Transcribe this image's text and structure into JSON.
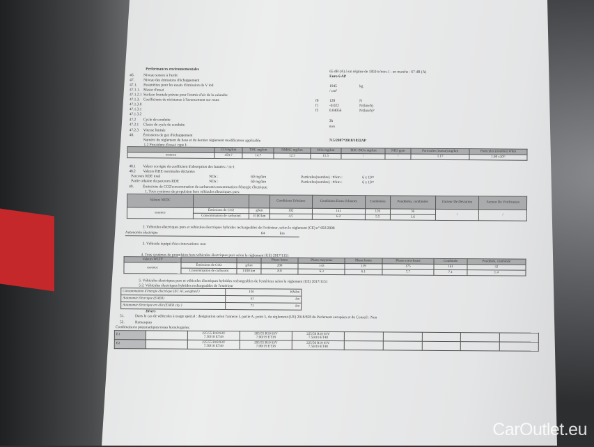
{
  "header": {
    "title": "Performances environnementales",
    "noise": "65 dB (A) à un régime de 1850 tr/min-1 - en marche : 67 dB (A)",
    "euro": "Euro 6 AP"
  },
  "lines": [
    {
      "n": "46.",
      "t": "Niveau sonore à l'arrêt"
    },
    {
      "n": "47.",
      "t": "Niveau des émissions d'échappement"
    },
    {
      "n": "47.1.",
      "t": "Paramètres pour les essais d'émission de V ind"
    },
    {
      "n": "47.1.1.",
      "t": "Masse d'essai"
    },
    {
      "n": "47.1.2.1",
      "t": "Surface frontale prévue pour l'entrée d'air de la calandre"
    },
    {
      "n": "47.1.3.",
      "t": "Coefficients de résistance à l'avancement sur route"
    },
    {
      "n": "47.1.3.0",
      "t": ""
    },
    {
      "n": "47.1.3.1",
      "t": ""
    },
    {
      "n": "47.1.3.2",
      "t": ""
    },
    {
      "n": "47.2",
      "t": "Cycle de conduite"
    },
    {
      "n": "47.2.1",
      "t": "Classe de cycle de conduite"
    },
    {
      "n": "47.2.3",
      "t": "Vitesse limitée"
    },
    {
      "n": "48.",
      "t": "Émissions de gaz d'échappement"
    },
    {
      "n": "",
      "t": "Numéro du règlement de base et du dernier règlement modificateur applicable"
    }
  ],
  "right_values": {
    "mass": "1945",
    "mass_unit": "kg",
    "surface": "/ cm²",
    "f0_label": "f0",
    "f0": "128",
    "f0_unit": "N",
    "f1_label": "f1",
    "f1": "-0.022",
    "f1_unit": "N/(km/h)",
    "f2_label": "f2",
    "f2": "0.04056",
    "f2_unit": "N/(km/h)²",
    "cycle": "3b",
    "class": "non",
    "regulation": "715/2007*2018/1832AP"
  },
  "type1": {
    "label": "1.2 Procédure d'essai: type I:",
    "headers": [
      "CO mg/km",
      "THC mg/km",
      "NMHC mg/km",
      "NOx mg/km",
      "THC+NOx mg/km",
      "NH3 ppm",
      "Particules (masse) mg/km",
      "Particules (nombre) #/km"
    ],
    "row_label": "essence",
    "values": [
      "459.7",
      "14.7",
      "12.3",
      "15.5",
      "/",
      "/",
      "1.17",
      "1.98 x10¹¹"
    ]
  },
  "l481": {
    "n": "48.1",
    "t": "Valeur corrigée du coefficient d'absorption des fumées: / m-1"
  },
  "l482": {
    "n": "48.2",
    "t": "Valeurs RDE maximales déclarées"
  },
  "rde": [
    {
      "label": "Parcours RDE total",
      "nox": "NOx :",
      "nox_val": "60 mg/km",
      "pn": "Particules(nombre) : #/km :",
      "pn_val": "6 x 10¹¹"
    },
    {
      "label": "Partie urbaine du parcours RDE",
      "nox": "NOx :",
      "nox_val": "60 mg/km",
      "pn": "Particules(nombre) : #/km :",
      "pn_val": "6 x 10¹¹"
    }
  ],
  "l49": {
    "n": "49.",
    "t": "Émissions de CO2/consommation de carburant/consommation d'énergie électrique:"
  },
  "nedc": {
    "caption": "1. Tous systèmes de propulsion hors véhicules électriques purs:",
    "title": "Valeurs NEDC",
    "headers": [
      "Conditions Urbaines",
      "Conditions Extra Urbaines",
      "Combinées",
      "Pondérées, combinées",
      "Facteur De Déviation",
      "Facteur De Vérification"
    ],
    "fuel": "essence",
    "rows": [
      {
        "label": "Émissions de CO2",
        "unit": "g/km",
        "values": [
          "102",
          "141",
          "126",
          "36"
        ]
      },
      {
        "label": "Consommation de carburant",
        "unit": "l/100 km",
        "values": [
          "4.5",
          "6.2",
          "5.5",
          "1.6"
        ]
      }
    ],
    "dev": "/",
    "ver": "/"
  },
  "ev2": {
    "t": "2. Véhicules électriques purs et véhicules électriques hybrides rechargeables de l'extérieur, selon le règlement (CE) n° 692/2008",
    "label": "Autonomie électrique",
    "value": "64",
    "unit": "km"
  },
  "eco": "3. Véhicule équipé d'éco-innovations: non",
  "wltp": {
    "caption": "4. Tous systèmes de propulsion hors véhicules électriques purs selon le règlement (UE) 2017/1151",
    "title": "Valeurs WLTP",
    "headers": [
      "Phase basse",
      "Phase moyenne",
      "Phase haute",
      "Phase extra-haute",
      "Combinée",
      "Pondérée, combinée"
    ],
    "fuel": "essence",
    "rows": [
      {
        "label": "Émissions de CO2",
        "unit": "g/km",
        "values": [
          "200",
          "143",
          "139",
          "175",
          "161",
          "32"
        ]
      },
      {
        "label": "Consommation de carburant",
        "unit": "l/100 km",
        "values": [
          "8.8",
          "6.3",
          "6.1",
          "7.7",
          "7.1",
          "1.4"
        ]
      }
    ]
  },
  "ev5": {
    "t": "5. Véhicules électriques purs et véhicules électriques hybrides rechargeables de l'extérieur selon le règlement (UE) 2017/1151",
    "sub": "5.2. Véhicules électriques hybrides rechargeables de l'extérieur",
    "rows": [
      {
        "label": "Consommation d'énergie électrique (EC AC,weighted )",
        "value": "156",
        "unit": "Wh/km"
      },
      {
        "label": "Autonomie électrique (EAER)",
        "value": "61",
        "unit": "km"
      },
      {
        "label": "Autonomie électrique en ville (EAER city )",
        "value": "71",
        "unit": "km"
      }
    ]
  },
  "divers": {
    "title": "Divers",
    "n51": "51.",
    "t51": "Dans le cas de véhicules à usage spécial : désignation selon l'annexe I, partie A, point 5, du règlement (UE) 2018/858 du Parlement européen et du Conseil : Non",
    "n52": "52.",
    "t52": "Remarques",
    "tyres_label": "Combinaisons pneumatiques/roues homologuées:"
  },
  "tyres": [
    {
      "axle": "E1",
      "c": [
        "225/55 R18 93V\n7.50J18 ET49",
        "205/55 R19 93V\n7.00J19 ET38",
        "225/50 R19 93V\n7.50J19 ET48"
      ]
    },
    {
      "axle": "E2",
      "c": [
        "225/55 R18 93V\n7.50J18 ET49",
        "205/55 R19 93V\n7.00J19 ET38",
        "225/50 R19 93V\n7.50J19 ET48"
      ]
    }
  ],
  "watermark": "CarOutlet.eu"
}
